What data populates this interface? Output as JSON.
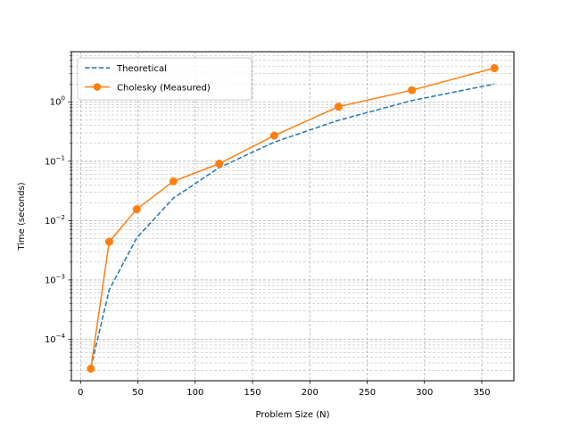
{
  "chart_data": {
    "type": "line",
    "title": "",
    "xlabel": "Problem Size (N)",
    "ylabel": "Time (seconds)",
    "xscale": "linear",
    "yscale": "log",
    "xlim": [
      -8,
      378
    ],
    "ylim": [
      2e-05,
      7
    ],
    "xticks": [
      0,
      50,
      100,
      150,
      200,
      250,
      300,
      350
    ],
    "yticks": [
      {
        "value": 0.0001,
        "base": "10",
        "exp": "−4"
      },
      {
        "value": 0.001,
        "base": "10",
        "exp": "−3"
      },
      {
        "value": 0.01,
        "base": "10",
        "exp": "−2"
      },
      {
        "value": 0.1,
        "base": "10",
        "exp": "−1"
      },
      {
        "value": 1,
        "base": "10",
        "exp": "0"
      }
    ],
    "grid": true,
    "grid_minor": true,
    "legend_position": "top-left",
    "series": [
      {
        "name": "Theoretical",
        "color": "#1f77b4",
        "style": "dashed",
        "marker": "none",
        "x": [
          9,
          25,
          49,
          81,
          121,
          169,
          225,
          289,
          361
        ],
        "y": [
          3.3e-05,
          0.00068,
          0.0051,
          0.024,
          0.078,
          0.21,
          0.49,
          1.05,
          2.0
        ]
      },
      {
        "name": "Cholesky (Measured)",
        "color": "#ff7f0e",
        "style": "solid",
        "marker": "circle",
        "x": [
          9,
          25,
          49,
          81,
          121,
          169,
          225,
          289,
          361
        ],
        "y": [
          3.2e-05,
          0.0044,
          0.0155,
          0.046,
          0.091,
          0.27,
          0.83,
          1.57,
          3.7
        ]
      }
    ]
  }
}
